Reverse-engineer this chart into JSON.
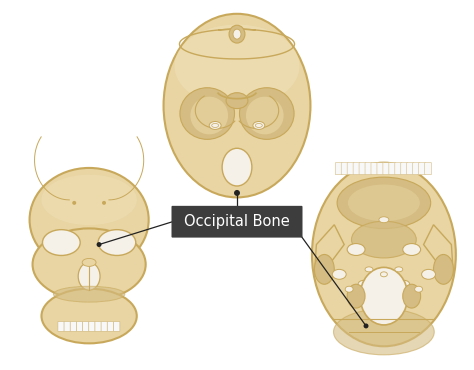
{
  "background_color": "#ffffff",
  "bone_color": "#e8d5a3",
  "bone_edge": "#c8a85a",
  "bone_light": "#f0e0b8",
  "bone_mid": "#d4bc82",
  "bone_dark": "#b8982a",
  "label_box_color": "#3d3d3d",
  "label_text": "Occipital Bone",
  "label_text_color": "#ffffff",
  "label_fontsize": 10.5,
  "line_color": "#222222",
  "hole_color": "#f5f0e8",
  "white_color": "#f8f8f8",
  "fig_width": 4.74,
  "fig_height": 3.7,
  "dpi": 100
}
